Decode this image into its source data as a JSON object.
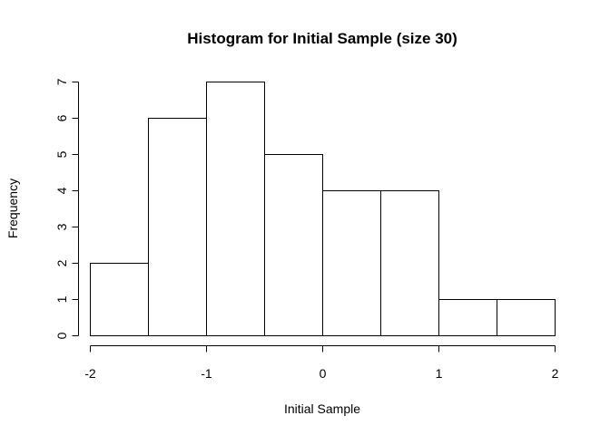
{
  "chart_data": {
    "type": "bar",
    "title": "Histogram for Initial Sample (size 30)",
    "xlabel": "Initial Sample",
    "ylabel": "Frequency",
    "bin_edges": [
      -2,
      -1.5,
      -1,
      -0.5,
      0,
      0.5,
      1,
      1.5,
      2
    ],
    "values": [
      2,
      6,
      7,
      5,
      4,
      4,
      1,
      1
    ],
    "xlim": [
      -2,
      2
    ],
    "ylim": [
      0,
      7
    ],
    "x_ticks": [
      -2,
      -1,
      0,
      1,
      2
    ],
    "x_tick_labels": [
      "-2",
      "-1",
      "0",
      "1",
      "2"
    ],
    "y_ticks": [
      0,
      1,
      2,
      3,
      4,
      5,
      6,
      7
    ],
    "y_tick_labels": [
      "0",
      "1",
      "2",
      "3",
      "4",
      "5",
      "6",
      "7"
    ],
    "grid": false,
    "bar_fill": "#ffffff",
    "bar_stroke": "#000000"
  }
}
